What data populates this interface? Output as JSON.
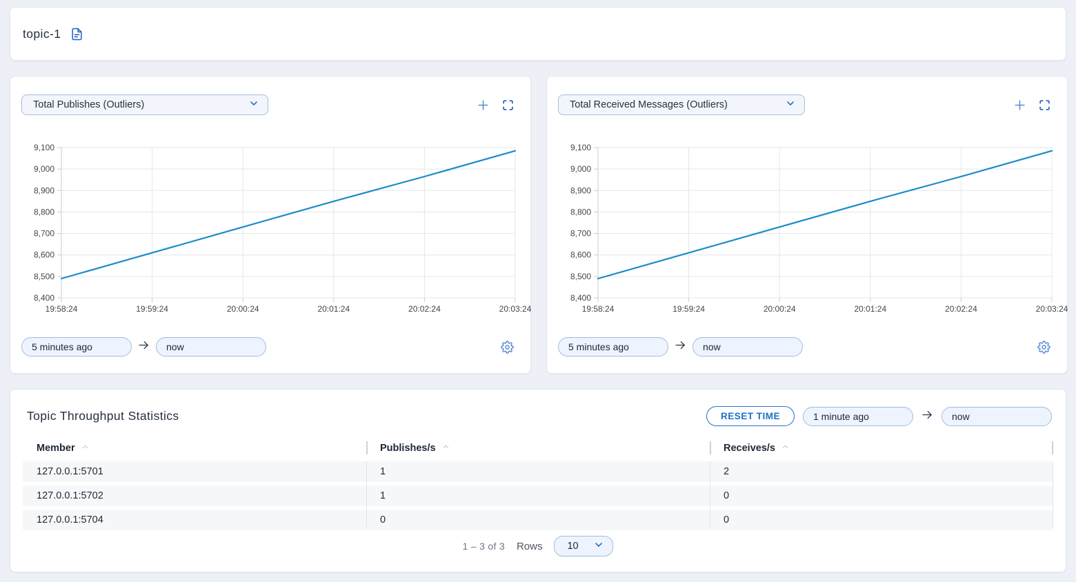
{
  "header": {
    "topic_name": "topic-1"
  },
  "colors": {
    "accent_blue": "#2a6fc8",
    "line_blue": "#1b8bc8",
    "page_bg": "#edf0f6"
  },
  "charts": [
    {
      "metric_label": "Total Publishes (Outliers)",
      "time_from": "5 minutes ago",
      "time_to": "now"
    },
    {
      "metric_label": "Total Received Messages (Outliers)",
      "time_from": "5 minutes ago",
      "time_to": "now"
    }
  ],
  "chart_data": [
    {
      "type": "line",
      "title": "Total Publishes (Outliers)",
      "x": [
        "19:58:24",
        "19:59:24",
        "20:00:24",
        "20:01:24",
        "20:02:24",
        "20:03:24"
      ],
      "series": [
        {
          "name": "Total Publishes",
          "values": [
            8490,
            8610,
            8730,
            8850,
            8965,
            9085
          ]
        }
      ],
      "ylim": [
        8400,
        9100
      ],
      "yticks": [
        8400,
        8500,
        8600,
        8700,
        8800,
        8900,
        9000,
        9100
      ],
      "grid": true,
      "legend": false,
      "line_color": "#1b8bc8"
    },
    {
      "type": "line",
      "title": "Total Received Messages (Outliers)",
      "x": [
        "19:58:24",
        "19:59:24",
        "20:00:24",
        "20:01:24",
        "20:02:24",
        "20:03:24"
      ],
      "series": [
        {
          "name": "Total Received Messages",
          "values": [
            8490,
            8610,
            8730,
            8850,
            8965,
            9085
          ]
        }
      ],
      "ylim": [
        8400,
        9100
      ],
      "yticks": [
        8400,
        8500,
        8600,
        8700,
        8800,
        8900,
        9000,
        9100
      ],
      "grid": true,
      "legend": false,
      "line_color": "#1b8bc8"
    }
  ],
  "stats_panel": {
    "title": "Topic Throughput Statistics",
    "reset_button_label": "RESET TIME",
    "time_from": "1 minute ago",
    "time_to": "now",
    "table": {
      "columns": [
        "Member",
        "Publishes/s",
        "Receives/s"
      ],
      "rows": [
        [
          "127.0.0.1:5701",
          "1",
          "2"
        ],
        [
          "127.0.0.1:5702",
          "1",
          "0"
        ],
        [
          "127.0.0.1:5704",
          "0",
          "0"
        ]
      ]
    },
    "pagination": {
      "range_label": "1 – 3 of 3",
      "rows_label": "Rows",
      "rows_per_page": "10"
    }
  }
}
